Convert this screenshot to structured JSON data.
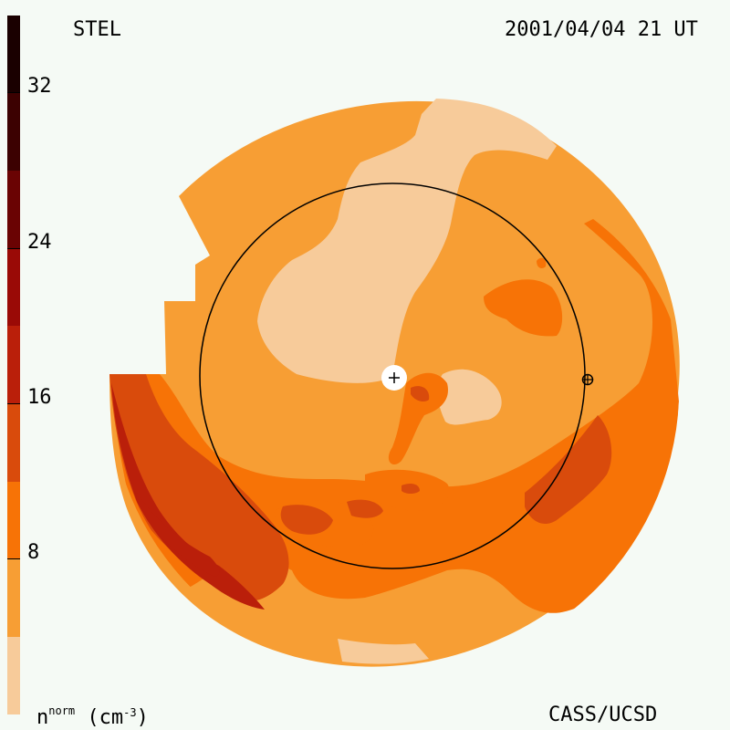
{
  "header": {
    "instrument": "STEL",
    "datetime": "2001/04/04 21 UT"
  },
  "footer": {
    "unit_label_base": "n",
    "unit_label_sup": "norm",
    "unit_label_rest": " (cm",
    "unit_label_exp": "-3",
    "unit_label_close": ")",
    "credit": "CASS/UCSD"
  },
  "colorbar": {
    "tick_labels": [
      "32",
      "24",
      "16",
      "8"
    ],
    "levels": [
      {
        "min": 0,
        "max": 4,
        "color": "#f7cb9a"
      },
      {
        "min": 4,
        "max": 8,
        "color": "#f79e34"
      },
      {
        "min": 8,
        "max": 12,
        "color": "#f77306"
      },
      {
        "min": 12,
        "max": 16,
        "color": "#d94b0c"
      },
      {
        "min": 16,
        "max": 20,
        "color": "#ba1f0a"
      },
      {
        "min": 20,
        "max": 24,
        "color": "#9a0a06"
      },
      {
        "min": 24,
        "max": 28,
        "color": "#6a0303"
      },
      {
        "min": 28,
        "max": 32,
        "color": "#3c0101"
      },
      {
        "min": 32,
        "max": 36,
        "color": "#1a0000"
      }
    ],
    "range": [
      0,
      36
    ]
  },
  "map": {
    "sun_marker": "+",
    "earth_marker": "⊕",
    "colors": {
      "bg_disk": "#f79e34",
      "light": "#f7cb9a",
      "mid": "#f77306",
      "dark": "#d94b0c",
      "darker": "#ba1f0a"
    }
  }
}
